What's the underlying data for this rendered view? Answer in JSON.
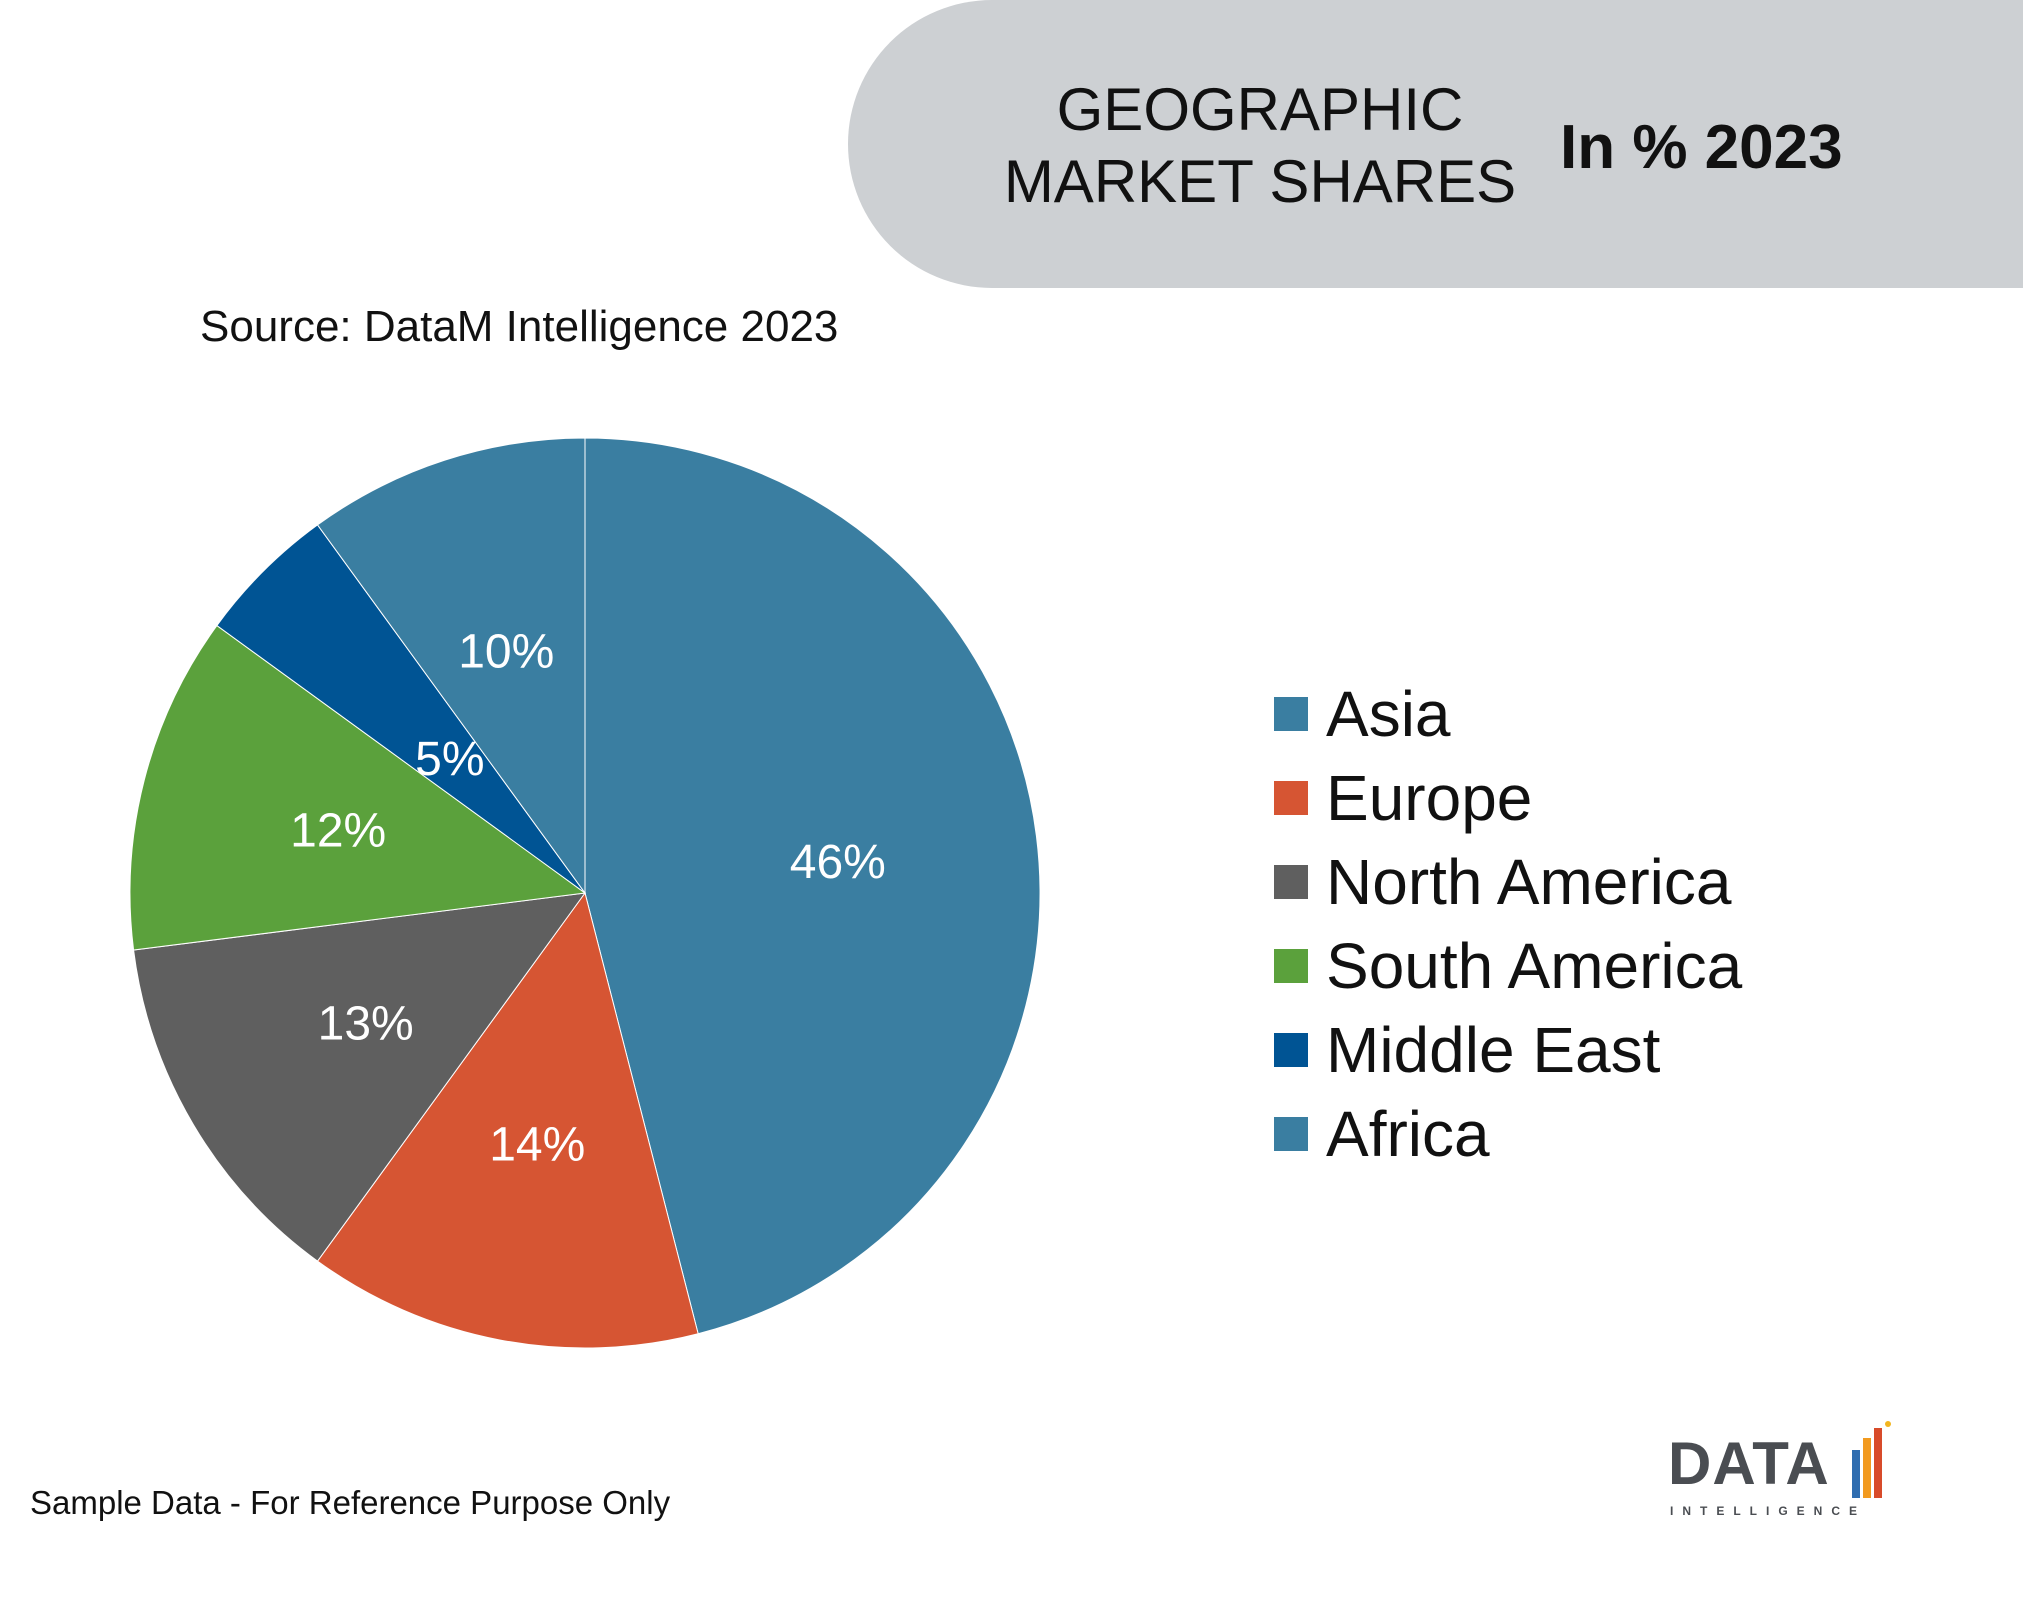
{
  "header": {
    "title_line1": "GEOGRAPHIC",
    "title_line2": "MARKET SHARES",
    "subtitle": "In % 2023"
  },
  "source": "Source: DataM Intelligence 2023",
  "footnote": "Sample Data - For Reference Purpose Only",
  "logo": {
    "word": "DATA",
    "sub": "INTELLIGENCE"
  },
  "chart_data": {
    "type": "pie",
    "title": "",
    "categories": [
      "Asia",
      "Europe",
      "North America",
      "South America",
      "Middle East",
      "Africa"
    ],
    "values": [
      46,
      14,
      13,
      12,
      5,
      10
    ],
    "labels": [
      "46%",
      "14%",
      "13%",
      "12%",
      "5%",
      "10%"
    ],
    "colors": [
      "#3a7ea1",
      "#d65533",
      "#5f5f5f",
      "#5ba13c",
      "#005494",
      "#3a7ea1"
    ],
    "start_angle_deg": 0,
    "direction": "clockwise",
    "legend_position": "right"
  }
}
